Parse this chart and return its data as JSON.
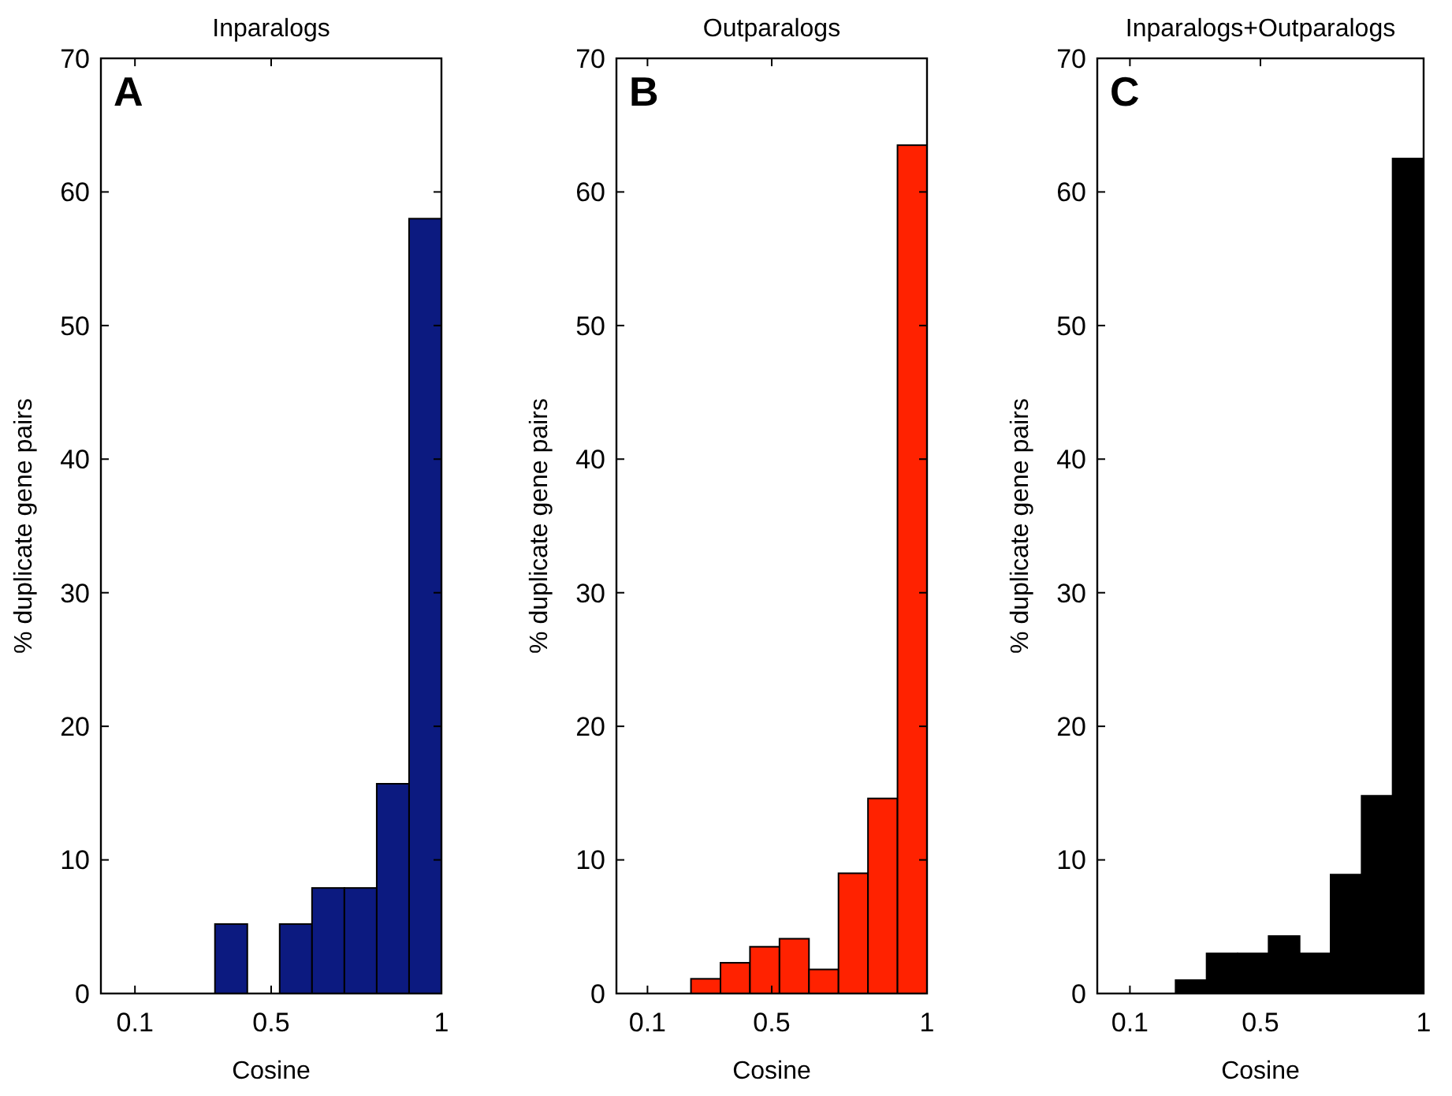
{
  "chart_data": [
    {
      "type": "histogram",
      "title": "Inparalogs",
      "xlabel": "Cosine",
      "ylabel": "% duplicate gene pairs",
      "annotations": [
        "A"
      ],
      "bins": [
        0.05,
        0.145,
        0.24,
        0.335,
        0.43,
        0.525,
        0.62,
        0.715,
        0.81,
        0.905,
        1.0
      ],
      "values": [
        0,
        0,
        0,
        5.2,
        0,
        5.2,
        7.9,
        7.9,
        15.7,
        58
      ],
      "color": "#0c1a80",
      "xlim": [
        0,
        1
      ],
      "xticks": [
        0.1,
        0.5,
        1
      ],
      "ylim": [
        0,
        70
      ],
      "yticks": [
        0,
        10,
        20,
        30,
        40,
        50,
        60,
        70
      ],
      "grid": false
    },
    {
      "type": "histogram",
      "title": "Outparalogs",
      "xlabel": "Cosine",
      "ylabel": "% duplicate gene pairs",
      "annotations": [
        "B"
      ],
      "bins": [
        0.05,
        0.145,
        0.24,
        0.335,
        0.43,
        0.525,
        0.62,
        0.715,
        0.81,
        0.905,
        1.0
      ],
      "values": [
        0,
        0,
        1.1,
        2.3,
        3.5,
        4.1,
        1.8,
        9,
        14.6,
        63.5
      ],
      "color": "#ff2200",
      "xlim": [
        0,
        1
      ],
      "xticks": [
        0.1,
        0.5,
        1
      ],
      "ylim": [
        0,
        70
      ],
      "yticks": [
        0,
        10,
        20,
        30,
        40,
        50,
        60,
        70
      ],
      "grid": false
    },
    {
      "type": "histogram",
      "title": "Inparalogs+Outparalogs",
      "xlabel": "Cosine",
      "ylabel": "% duplicate gene pairs",
      "annotations": [
        "C"
      ],
      "bins": [
        0.05,
        0.145,
        0.24,
        0.335,
        0.43,
        0.525,
        0.62,
        0.715,
        0.81,
        0.905,
        1.0
      ],
      "values": [
        0,
        0,
        1,
        3,
        3,
        4.3,
        3,
        8.9,
        14.8,
        62.5
      ],
      "color": "#000000",
      "xlim": [
        0,
        1
      ],
      "xticks": [
        0.1,
        0.5,
        1
      ],
      "ylim": [
        0,
        70
      ],
      "yticks": [
        0,
        10,
        20,
        30,
        40,
        50,
        60,
        70
      ],
      "grid": false
    }
  ]
}
